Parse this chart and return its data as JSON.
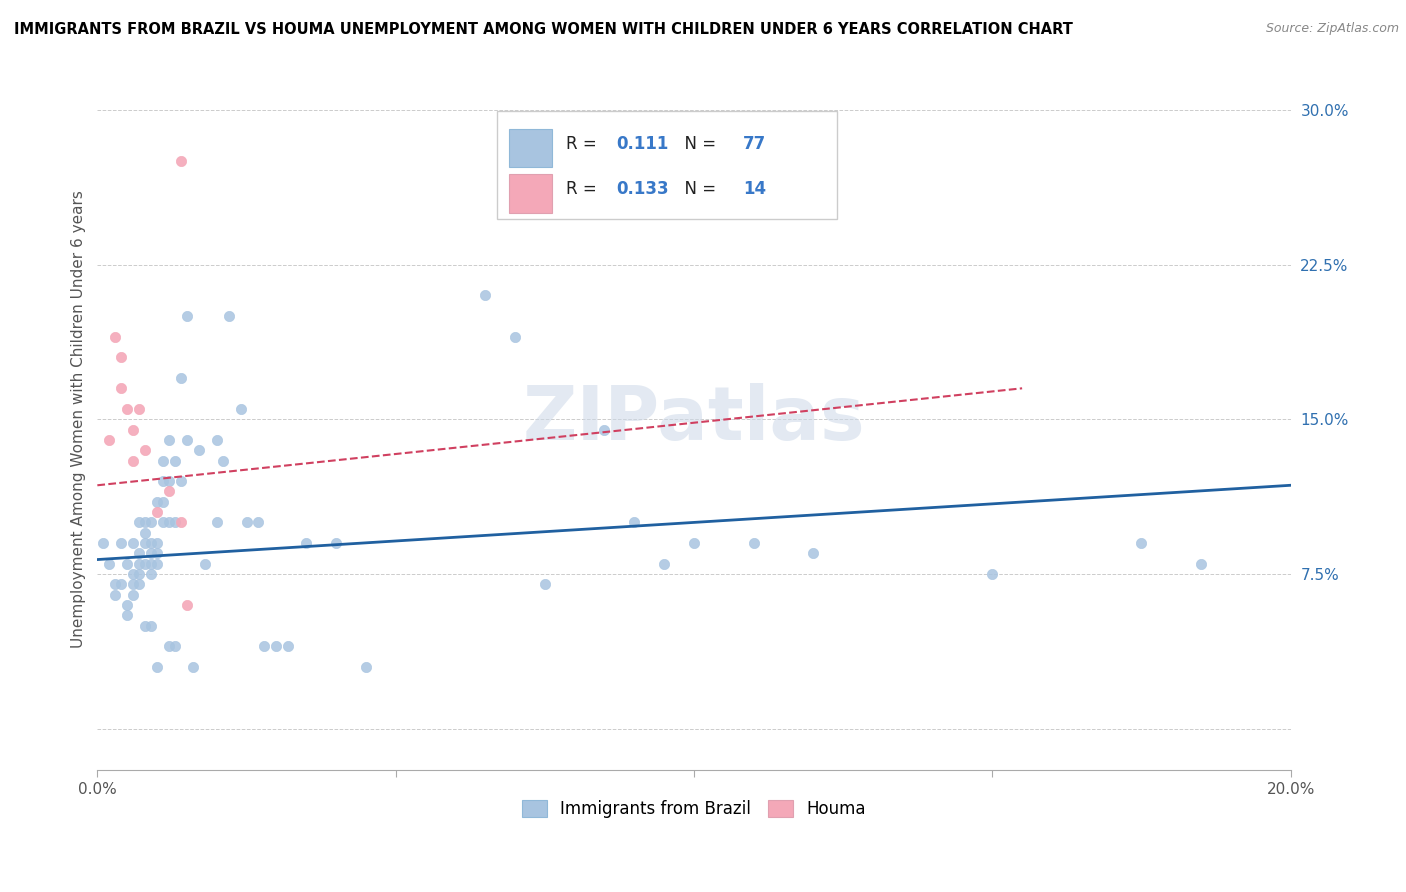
{
  "title": "IMMIGRANTS FROM BRAZIL VS HOUMA UNEMPLOYMENT AMONG WOMEN WITH CHILDREN UNDER 6 YEARS CORRELATION CHART",
  "source": "Source: ZipAtlas.com",
  "ylabel": "Unemployment Among Women with Children Under 6 years",
  "xlim": [
    0.0,
    0.2
  ],
  "ylim": [
    -0.02,
    0.32
  ],
  "xticks": [
    0.0,
    0.05,
    0.1,
    0.15,
    0.2
  ],
  "xticklabels": [
    "0.0%",
    "",
    "",
    "",
    "20.0%"
  ],
  "yticks": [
    0.0,
    0.075,
    0.15,
    0.225,
    0.3
  ],
  "yticklabels": [
    "",
    "7.5%",
    "15.0%",
    "22.5%",
    "30.0%"
  ],
  "blue_color": "#a8c4e0",
  "pink_color": "#f4a8b8",
  "blue_line_color": "#2060a0",
  "pink_line_color": "#d04060",
  "watermark": "ZIPatlas",
  "scatter_blue": [
    [
      0.001,
      0.09
    ],
    [
      0.002,
      0.08
    ],
    [
      0.003,
      0.065
    ],
    [
      0.003,
      0.07
    ],
    [
      0.004,
      0.09
    ],
    [
      0.004,
      0.07
    ],
    [
      0.005,
      0.08
    ],
    [
      0.005,
      0.06
    ],
    [
      0.005,
      0.055
    ],
    [
      0.006,
      0.09
    ],
    [
      0.006,
      0.075
    ],
    [
      0.006,
      0.07
    ],
    [
      0.006,
      0.065
    ],
    [
      0.007,
      0.1
    ],
    [
      0.007,
      0.085
    ],
    [
      0.007,
      0.08
    ],
    [
      0.007,
      0.075
    ],
    [
      0.007,
      0.07
    ],
    [
      0.008,
      0.1
    ],
    [
      0.008,
      0.095
    ],
    [
      0.008,
      0.09
    ],
    [
      0.008,
      0.08
    ],
    [
      0.008,
      0.05
    ],
    [
      0.009,
      0.1
    ],
    [
      0.009,
      0.09
    ],
    [
      0.009,
      0.085
    ],
    [
      0.009,
      0.08
    ],
    [
      0.009,
      0.075
    ],
    [
      0.009,
      0.05
    ],
    [
      0.01,
      0.11
    ],
    [
      0.01,
      0.09
    ],
    [
      0.01,
      0.085
    ],
    [
      0.01,
      0.08
    ],
    [
      0.01,
      0.03
    ],
    [
      0.011,
      0.13
    ],
    [
      0.011,
      0.12
    ],
    [
      0.011,
      0.11
    ],
    [
      0.011,
      0.1
    ],
    [
      0.012,
      0.14
    ],
    [
      0.012,
      0.12
    ],
    [
      0.012,
      0.1
    ],
    [
      0.012,
      0.04
    ],
    [
      0.013,
      0.13
    ],
    [
      0.013,
      0.1
    ],
    [
      0.013,
      0.04
    ],
    [
      0.014,
      0.17
    ],
    [
      0.014,
      0.12
    ],
    [
      0.015,
      0.2
    ],
    [
      0.015,
      0.14
    ],
    [
      0.016,
      0.03
    ],
    [
      0.017,
      0.135
    ],
    [
      0.018,
      0.08
    ],
    [
      0.02,
      0.14
    ],
    [
      0.02,
      0.1
    ],
    [
      0.021,
      0.13
    ],
    [
      0.022,
      0.2
    ],
    [
      0.024,
      0.155
    ],
    [
      0.025,
      0.1
    ],
    [
      0.027,
      0.1
    ],
    [
      0.028,
      0.04
    ],
    [
      0.03,
      0.04
    ],
    [
      0.032,
      0.04
    ],
    [
      0.035,
      0.09
    ],
    [
      0.04,
      0.09
    ],
    [
      0.045,
      0.03
    ],
    [
      0.065,
      0.21
    ],
    [
      0.07,
      0.19
    ],
    [
      0.075,
      0.07
    ],
    [
      0.085,
      0.145
    ],
    [
      0.09,
      0.1
    ],
    [
      0.095,
      0.08
    ],
    [
      0.1,
      0.09
    ],
    [
      0.11,
      0.09
    ],
    [
      0.12,
      0.085
    ],
    [
      0.15,
      0.075
    ],
    [
      0.175,
      0.09
    ],
    [
      0.185,
      0.08
    ]
  ],
  "scatter_pink": [
    [
      0.002,
      0.14
    ],
    [
      0.003,
      0.19
    ],
    [
      0.004,
      0.18
    ],
    [
      0.004,
      0.165
    ],
    [
      0.005,
      0.155
    ],
    [
      0.006,
      0.145
    ],
    [
      0.006,
      0.13
    ],
    [
      0.007,
      0.155
    ],
    [
      0.008,
      0.135
    ],
    [
      0.01,
      0.105
    ],
    [
      0.012,
      0.115
    ],
    [
      0.014,
      0.275
    ],
    [
      0.014,
      0.1
    ],
    [
      0.015,
      0.06
    ]
  ],
  "blue_trend_x": [
    0.0,
    0.2
  ],
  "blue_trend_y": [
    0.082,
    0.118
  ],
  "pink_trend_x": [
    0.0,
    0.155
  ],
  "pink_trend_y": [
    0.118,
    0.165
  ]
}
